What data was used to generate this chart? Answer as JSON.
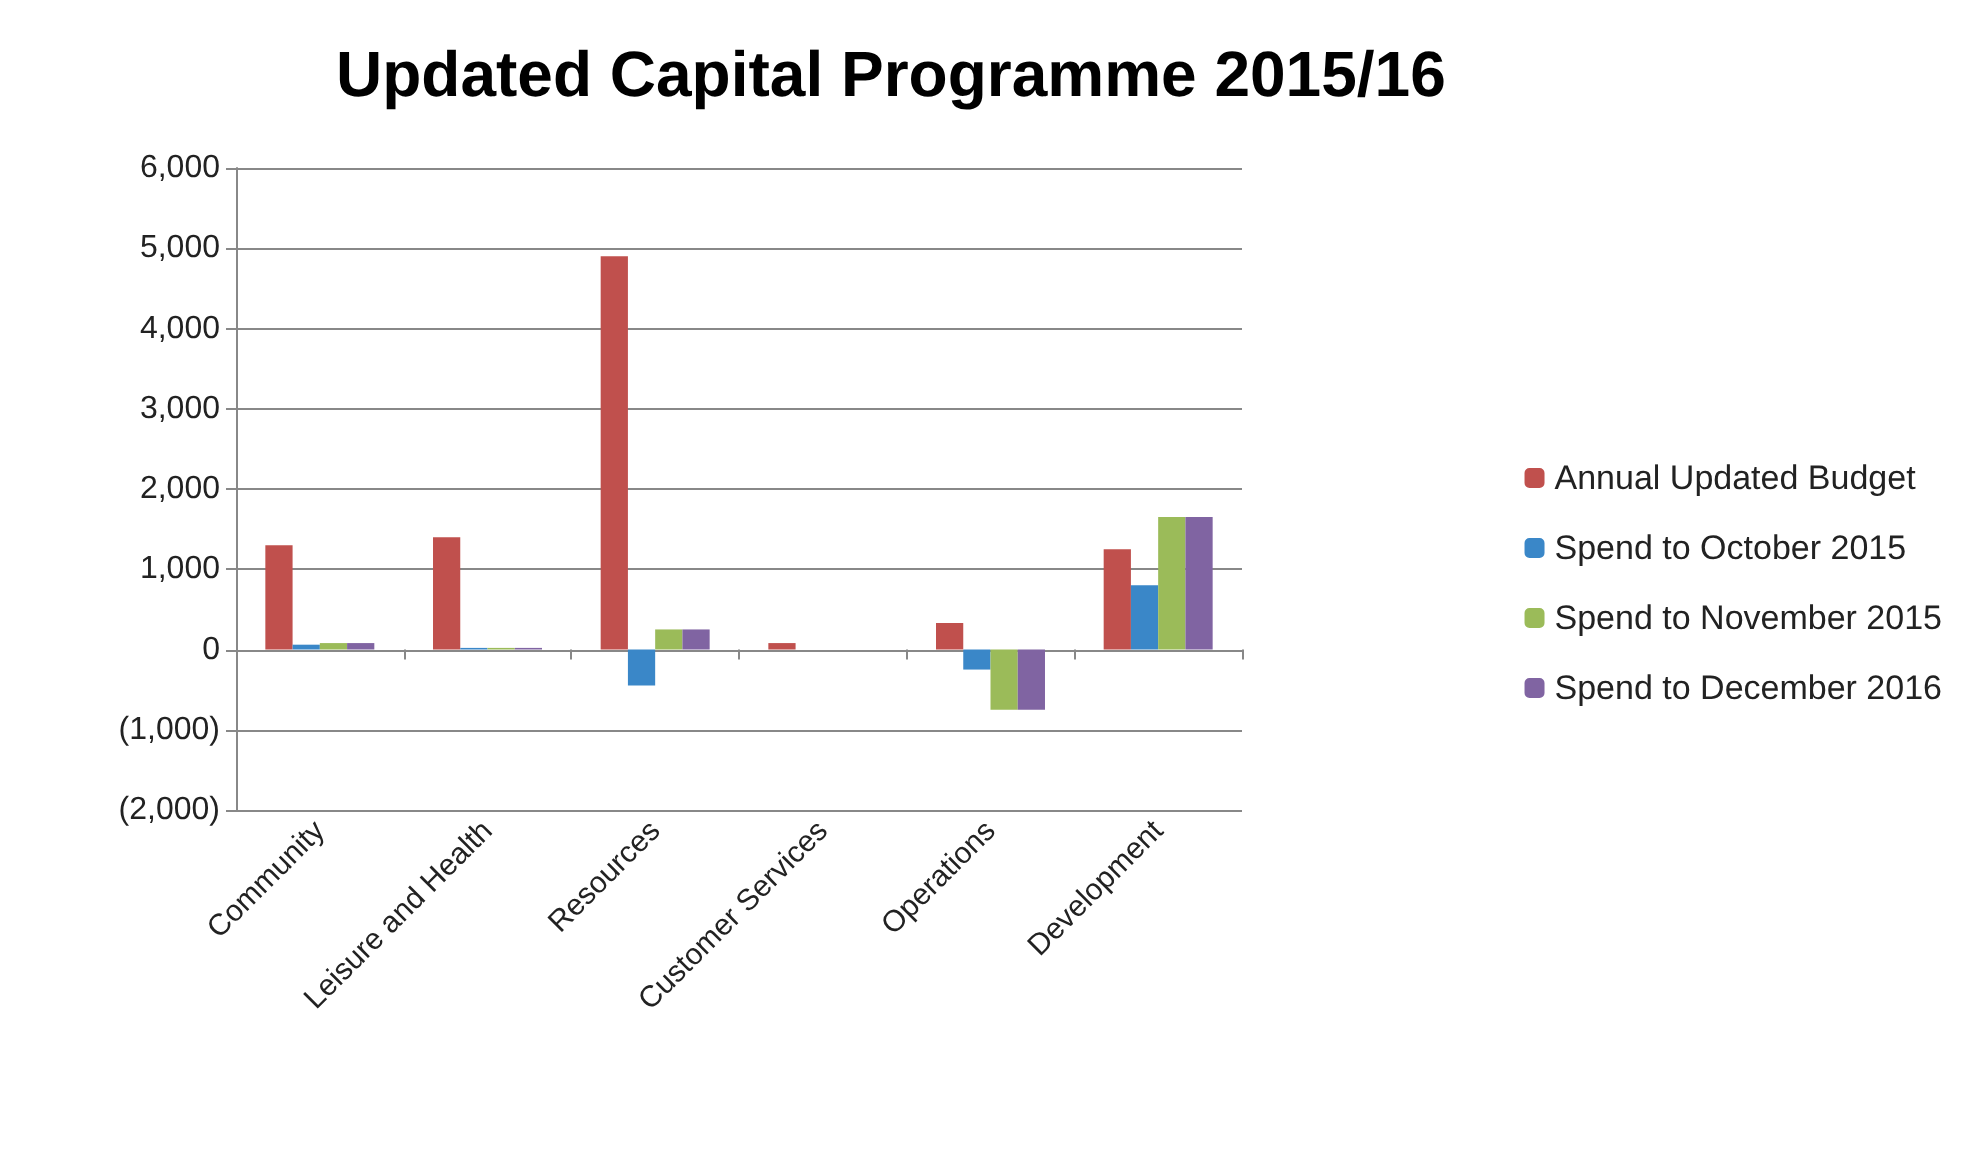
{
  "chart_data": {
    "type": "bar",
    "title": "Updated Capital Programme 2015/16",
    "categories": [
      "Community",
      "Leisure and Health",
      "Resources",
      "Customer Services",
      "Operations",
      "Development"
    ],
    "series": [
      {
        "name": "Annual Updated Budget",
        "color": "#c0504d",
        "values": [
          1300,
          1400,
          4900,
          80,
          330,
          1250
        ]
      },
      {
        "name": "Spend to October 2015",
        "color": "#3a87c8",
        "values": [
          60,
          20,
          -450,
          0,
          -250,
          800
        ]
      },
      {
        "name": "Spend to November 2015",
        "color": "#9bbb59",
        "values": [
          80,
          20,
          250,
          0,
          -750,
          1650
        ]
      },
      {
        "name": "Spend to December 2016",
        "color": "#8064a2",
        "values": [
          80,
          20,
          250,
          0,
          -750,
          1650
        ]
      }
    ],
    "ylim": [
      -2000,
      6000
    ],
    "yticks": [
      {
        "value": -2000,
        "label": "(2,000)"
      },
      {
        "value": -1000,
        "label": "(1,000)"
      },
      0,
      {
        "value": 1000,
        "label": "1,000"
      },
      {
        "value": 2000,
        "label": "2,000"
      },
      {
        "value": 3000,
        "label": "3,000"
      },
      {
        "value": 4000,
        "label": "4,000"
      },
      {
        "value": 5000,
        "label": "5,000"
      },
      {
        "value": 6000,
        "label": "6,000"
      }
    ],
    "grid": "y",
    "legend": "right"
  }
}
